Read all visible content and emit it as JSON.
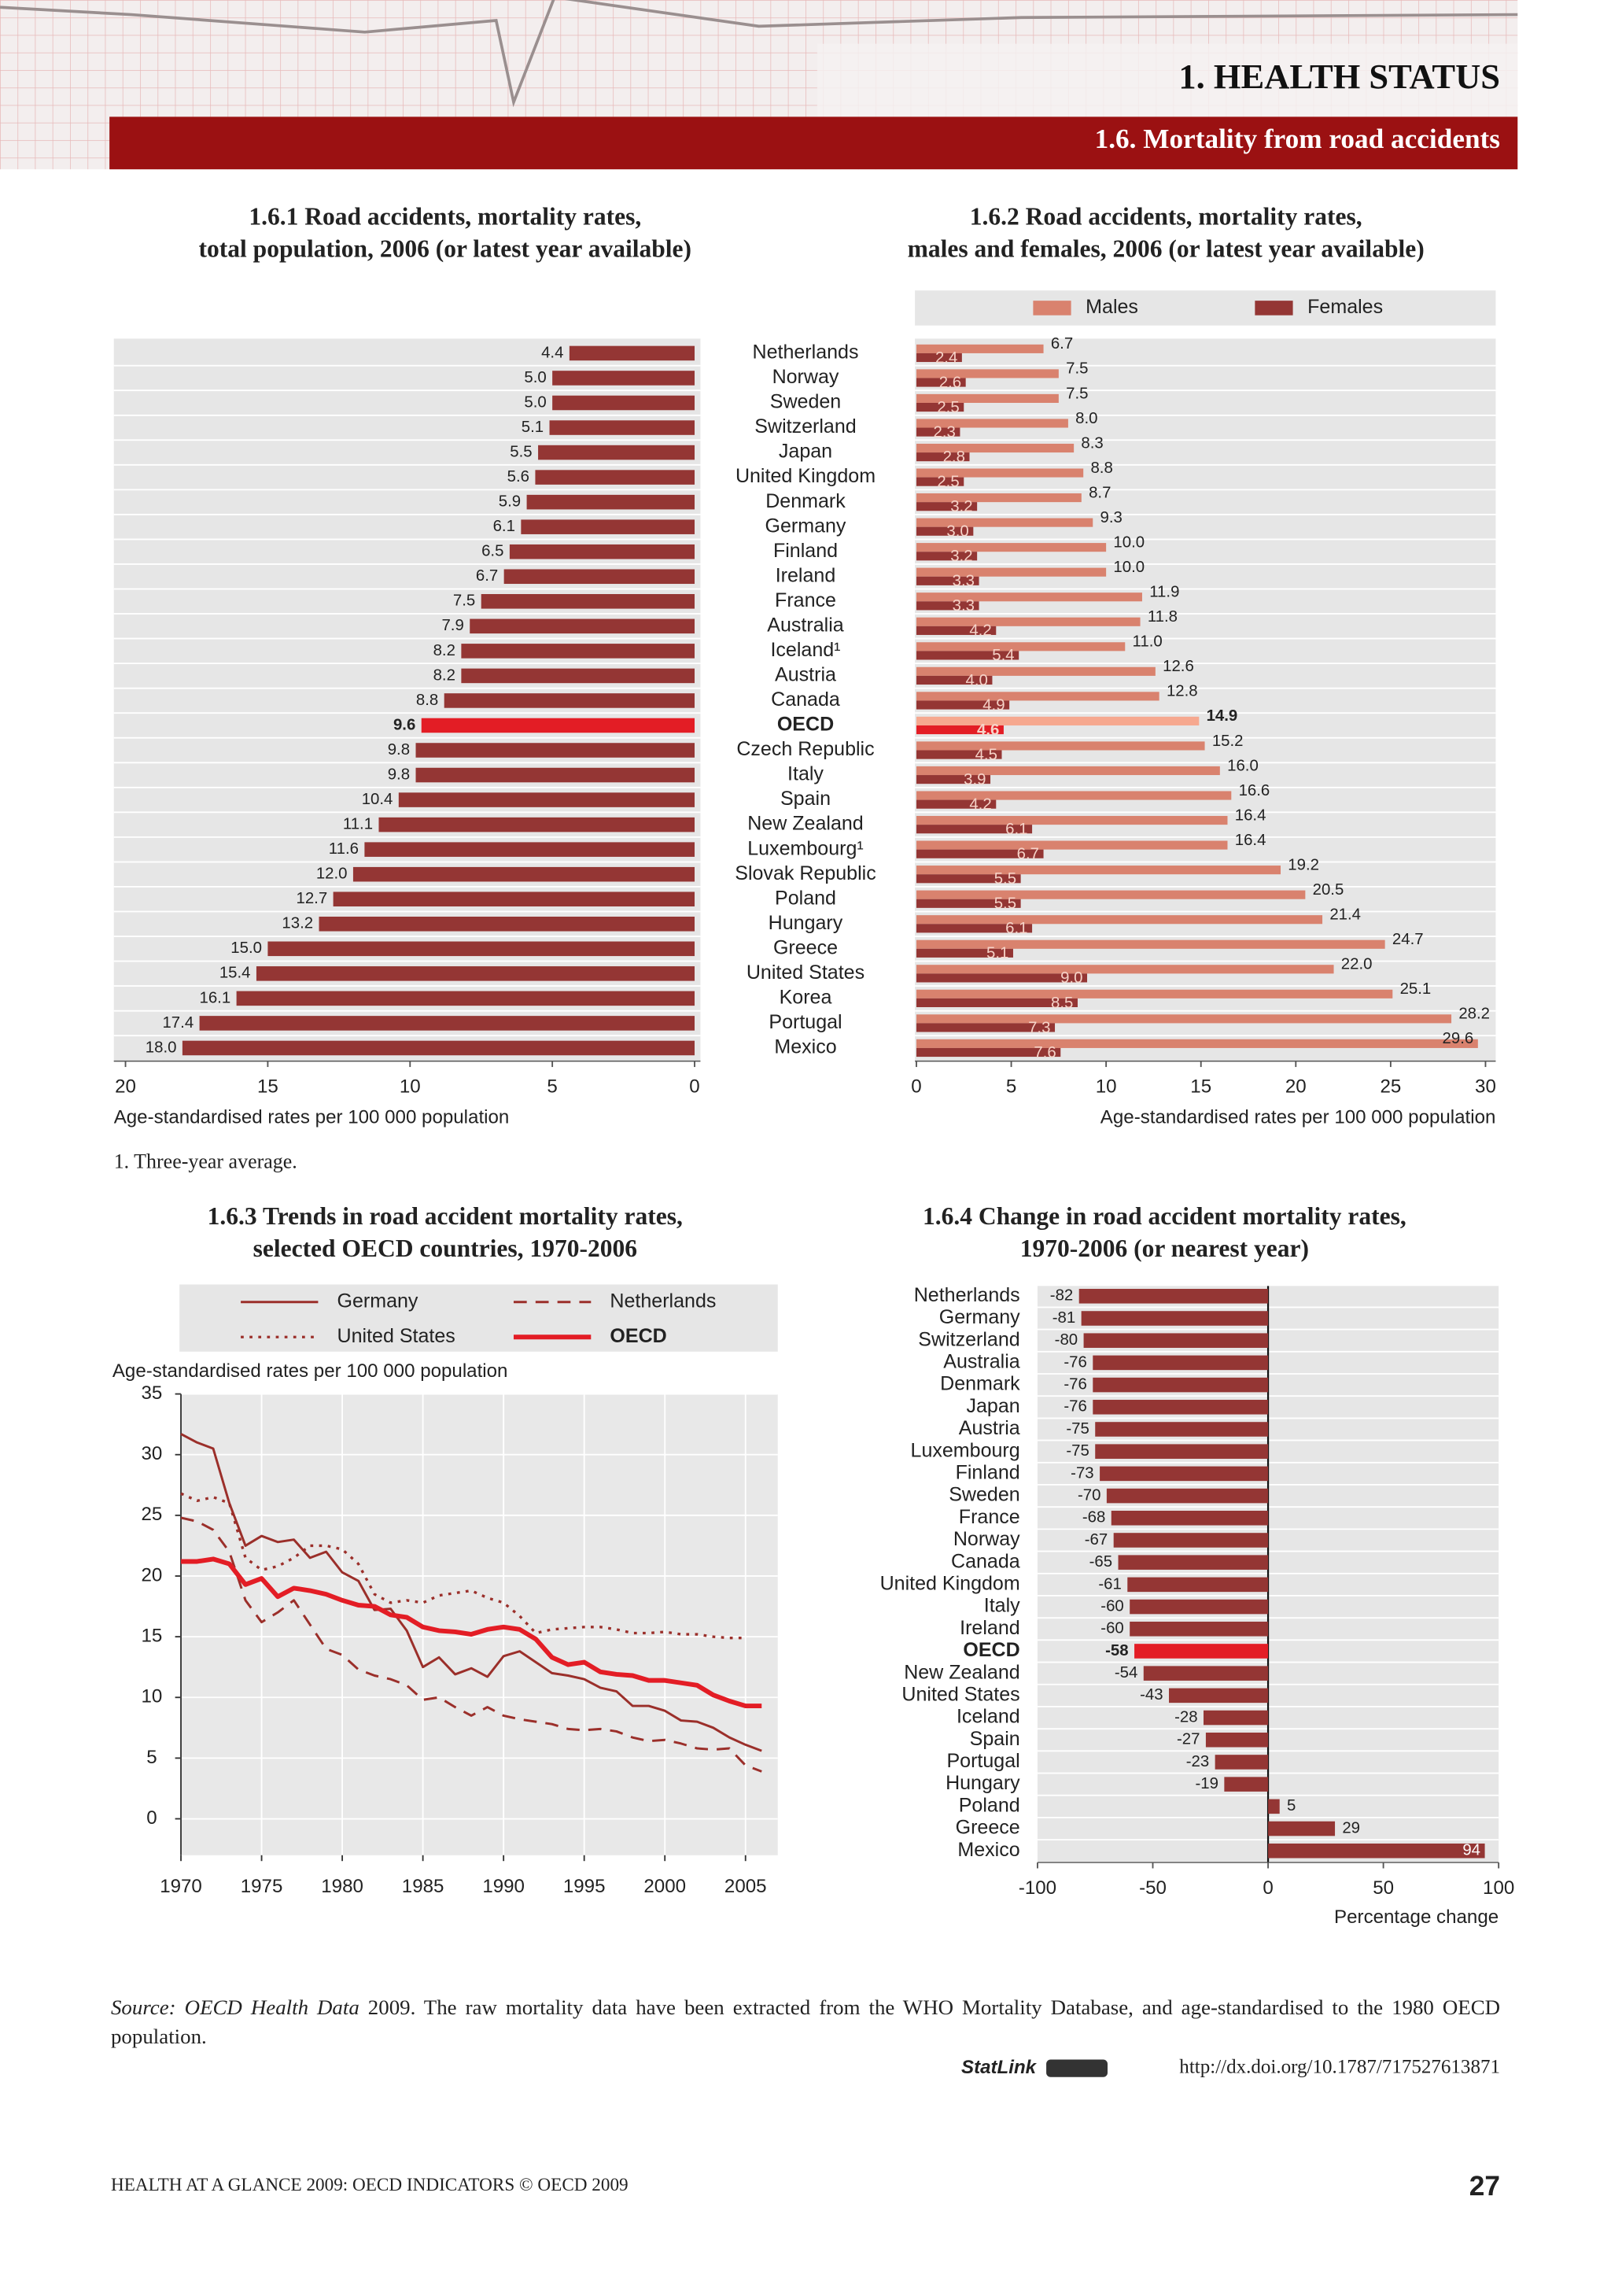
{
  "header": {
    "chapter": "1. HEALTH STATUS",
    "section": "1.6. Mortality from road accidents"
  },
  "chart_data": [
    {
      "type": "bar",
      "orientation": "horizontal",
      "title": [
        "1.6.1 Road accidents, mortality rates,",
        "total population, 2006 (or latest year available)"
      ],
      "categories": [
        "Netherlands",
        "Norway",
        "Sweden",
        "Switzerland",
        "Japan",
        "United Kingdom",
        "Denmark",
        "Germany",
        "Finland",
        "Ireland",
        "France",
        "Australia",
        "Iceland¹",
        "Austria",
        "Canada",
        "OECD",
        "Czech Republic",
        "Italy",
        "Spain",
        "New Zealand",
        "Luxembourg¹",
        "Slovak Republic",
        "Poland",
        "Hungary",
        "Greece",
        "United States",
        "Korea",
        "Portugal",
        "Mexico"
      ],
      "values": [
        4.4,
        5.0,
        5.0,
        5.1,
        5.5,
        5.6,
        5.9,
        6.1,
        6.5,
        6.7,
        7.5,
        7.9,
        8.2,
        8.2,
        8.8,
        9.6,
        9.8,
        9.8,
        10.4,
        11.1,
        11.6,
        12.0,
        12.7,
        13.2,
        15.0,
        15.4,
        16.1,
        17.4,
        18.0
      ],
      "value_labels": [
        "4.4",
        "5.0",
        "5.0",
        "5.1",
        "5.5",
        "5.6",
        "5.9",
        "6.1",
        "6.5",
        "6.7",
        "7.5",
        "7.9",
        "8.2",
        "8.2",
        "8.8",
        "9.6",
        "9.8",
        "9.8",
        "10.4",
        "11.1",
        "11.6",
        "12.0",
        "12.7",
        "13.2",
        "15.0",
        "15.4",
        "16.1",
        "17.4",
        "18.0"
      ],
      "colors": [
        "#943634",
        "#943634",
        "#943634",
        "#943634",
        "#943634",
        "#943634",
        "#943634",
        "#943634",
        "#943634",
        "#943634",
        "#943634",
        "#943634",
        "#943634",
        "#943634",
        "#943634",
        "#e31d25",
        "#943634",
        "#943634",
        "#943634",
        "#943634",
        "#943634",
        "#943634",
        "#943634",
        "#943634",
        "#943634",
        "#943634",
        "#943634",
        "#943634",
        "#943634"
      ],
      "xlim": [
        20,
        0
      ],
      "xticks": [
        20,
        15,
        10,
        5,
        0
      ],
      "xlabel": "Age-standardised rates per 100 000 population"
    },
    {
      "type": "bar",
      "orientation": "horizontal",
      "title": [
        "1.6.2 Road accidents, mortality rates,",
        "males and females, 2006 (or latest year available)"
      ],
      "series": [
        {
          "name": "Males",
          "color": "#d9826e",
          "colors": [
            "#d9826e",
            "#d9826e",
            "#d9826e",
            "#d9826e",
            "#d9826e",
            "#d9826e",
            "#d9826e",
            "#d9826e",
            "#d9826e",
            "#d9826e",
            "#d9826e",
            "#d9826e",
            "#d9826e",
            "#d9826e",
            "#d9826e",
            "#f6a88f",
            "#d9826e",
            "#d9826e",
            "#d9826e",
            "#d9826e",
            "#d9826e",
            "#d9826e",
            "#d9826e",
            "#d9826e",
            "#d9826e",
            "#d9826e",
            "#d9826e",
            "#d9826e",
            "#d9826e"
          ],
          "values": [
            6.7,
            7.5,
            7.5,
            8.0,
            8.3,
            8.8,
            8.7,
            9.3,
            10.0,
            10.0,
            11.9,
            11.8,
            11.0,
            12.6,
            12.8,
            14.9,
            15.2,
            16.0,
            16.6,
            16.4,
            16.4,
            19.2,
            20.5,
            21.4,
            24.7,
            22.0,
            25.1,
            28.2,
            29.6
          ],
          "value_labels": [
            "6.7",
            "7.5",
            "7.5",
            "8.0",
            "8.3",
            "8.8",
            "8.7",
            "9.3",
            "10.0",
            "10.0",
            "11.9",
            "11.8",
            "11.0",
            "12.6",
            "12.8",
            "14.9",
            "15.2",
            "16.0",
            "16.6",
            "16.4",
            "16.4",
            "19.2",
            "20.5",
            "21.4",
            "24.7",
            "22.0",
            "25.1",
            "28.2",
            "29.6"
          ]
        },
        {
          "name": "Females",
          "color": "#943634",
          "colors": [
            "#943634",
            "#943634",
            "#943634",
            "#943634",
            "#943634",
            "#943634",
            "#943634",
            "#943634",
            "#943634",
            "#943634",
            "#943634",
            "#943634",
            "#943634",
            "#943634",
            "#943634",
            "#e31d25",
            "#943634",
            "#943634",
            "#943634",
            "#943634",
            "#943634",
            "#943634",
            "#943634",
            "#943634",
            "#943634",
            "#943634",
            "#943634",
            "#943634",
            "#943634"
          ],
          "values": [
            2.4,
            2.6,
            2.5,
            2.3,
            2.8,
            2.5,
            3.2,
            3.0,
            3.2,
            3.3,
            3.3,
            4.2,
            5.4,
            4.0,
            4.9,
            4.6,
            4.5,
            3.9,
            4.2,
            6.1,
            6.7,
            5.5,
            5.5,
            6.1,
            5.1,
            9.0,
            8.5,
            7.3,
            7.6
          ],
          "value_labels": [
            "2.4",
            "2.6",
            "2.5",
            "2.3",
            "2.8",
            "2.5",
            "3.2",
            "3.0",
            "3.2",
            "3.3",
            "3.3",
            "4.2",
            "5.4",
            "4.0",
            "4.9",
            "4.6",
            "4.5",
            "3.9",
            "4.2",
            "6.1",
            "6.7",
            "5.5",
            "5.5",
            "6.1",
            "5.1",
            "9.0",
            "8.5",
            "7.3",
            "7.6"
          ]
        }
      ],
      "xlim": [
        0,
        30
      ],
      "xticks": [
        0,
        5,
        10,
        15,
        20,
        25,
        30
      ],
      "xlabel": "Age-standardised rates per 100 000 population"
    },
    {
      "type": "line",
      "title": [
        "1.6.3 Trends in road accident mortality rates,",
        "selected OECD countries, 1970-2006"
      ],
      "ylabel": "Age-standardised rates per 100 000 population",
      "x": [
        1970,
        1971,
        1972,
        1973,
        1974,
        1975,
        1976,
        1977,
        1978,
        1979,
        1980,
        1981,
        1982,
        1983,
        1984,
        1985,
        1986,
        1987,
        1988,
        1989,
        1990,
        1991,
        1992,
        1993,
        1994,
        1995,
        1996,
        1997,
        1998,
        1999,
        2000,
        2001,
        2002,
        2003,
        2004,
        2005,
        2006
      ],
      "series": [
        {
          "name": "Germany",
          "color": "#9b2f2a",
          "dash": "solid",
          "width": 1.6,
          "values": [
            31.7,
            31.0,
            30.5,
            26.0,
            22.5,
            23.3,
            22.8,
            23.0,
            21.5,
            22.0,
            20.3,
            19.6,
            17.2,
            17.3,
            15.5,
            12.5,
            13.3,
            11.9,
            12.4,
            11.7,
            13.4,
            13.8,
            12.9,
            12.0,
            11.8,
            11.5,
            10.8,
            10.5,
            9.3,
            9.3,
            8.9,
            8.1,
            8.0,
            7.5,
            6.7,
            6.1,
            5.6
          ]
        },
        {
          "name": "Netherlands",
          "color": "#9b2f2a",
          "dash": "dashed",
          "width": 1.6,
          "values": [
            24.8,
            24.5,
            23.8,
            22.0,
            18.0,
            16.2,
            17.0,
            18.0,
            16.0,
            14.0,
            13.5,
            12.3,
            11.8,
            11.5,
            11.0,
            9.8,
            10.0,
            9.2,
            8.5,
            9.2,
            8.5,
            8.2,
            8.0,
            7.8,
            7.4,
            7.3,
            7.4,
            7.2,
            6.7,
            6.4,
            6.5,
            6.2,
            5.8,
            5.7,
            5.8,
            4.4,
            3.9
          ]
        },
        {
          "name": "United States",
          "color": "#9b2f2a",
          "dash": "dotted",
          "width": 1.8,
          "values": [
            26.8,
            26.2,
            26.5,
            26.0,
            21.5,
            20.5,
            20.8,
            21.5,
            22.5,
            22.5,
            22.2,
            21.0,
            18.5,
            17.8,
            18.0,
            17.8,
            18.4,
            18.6,
            18.8,
            18.2,
            17.8,
            16.7,
            15.3,
            15.6,
            15.7,
            15.8,
            15.8,
            15.6,
            15.3,
            15.3,
            15.4,
            15.2,
            15.2,
            15.0,
            14.9,
            14.9,
            null
          ]
        },
        {
          "name": "OECD",
          "color": "#e31d25",
          "dash": "solid",
          "width": 3.2,
          "values": [
            21.2,
            21.2,
            21.4,
            21.0,
            19.3,
            19.8,
            18.3,
            19.0,
            18.8,
            18.5,
            18.0,
            17.6,
            17.5,
            16.8,
            16.6,
            15.8,
            15.5,
            15.4,
            15.2,
            15.6,
            15.8,
            15.6,
            14.8,
            13.3,
            12.7,
            12.9,
            12.1,
            11.9,
            11.8,
            11.4,
            11.4,
            11.2,
            11.0,
            10.2,
            9.7,
            9.3,
            9.3
          ]
        }
      ],
      "xlim": [
        1970,
        2007
      ],
      "xticks": [
        1970,
        1975,
        1980,
        1985,
        1990,
        1995,
        2000,
        2005
      ],
      "ylim": [
        -3,
        35
      ],
      "yticks": [
        0,
        5,
        10,
        15,
        20,
        25,
        30,
        35
      ],
      "grid": true
    },
    {
      "type": "bar",
      "orientation": "horizontal",
      "title": [
        "1.6.4 Change in road accident mortality rates,",
        "1970-2006 (or nearest year)"
      ],
      "categories": [
        "Netherlands",
        "Germany",
        "Switzerland",
        "Australia",
        "Denmark",
        "Japan",
        "Austria",
        "Luxembourg",
        "Finland",
        "Sweden",
        "France",
        "Norway",
        "Canada",
        "United Kingdom",
        "Italy",
        "Ireland",
        "OECD",
        "New Zealand",
        "United States",
        "Iceland",
        "Spain",
        "Portugal",
        "Hungary",
        "Poland",
        "Greece",
        "Mexico"
      ],
      "values": [
        -82,
        -81,
        -80,
        -76,
        -76,
        -76,
        -75,
        -75,
        -73,
        -70,
        -68,
        -67,
        -65,
        -61,
        -60,
        -60,
        -58,
        -54,
        -43,
        -28,
        -27,
        -23,
        -19,
        5,
        29,
        94
      ],
      "colors": [
        "#943634",
        "#943634",
        "#943634",
        "#943634",
        "#943634",
        "#943634",
        "#943634",
        "#943634",
        "#943634",
        "#943634",
        "#943634",
        "#943634",
        "#943634",
        "#943634",
        "#943634",
        "#943634",
        "#e31d25",
        "#943634",
        "#943634",
        "#943634",
        "#943634",
        "#943634",
        "#943634",
        "#943634",
        "#943634",
        "#943634"
      ],
      "xlim": [
        -100,
        100
      ],
      "xticks": [
        -100,
        -50,
        0,
        50,
        100
      ],
      "xlabel": "Percentage change"
    }
  ],
  "footnote": "1. Three-year average.",
  "source": {
    "label": "Source:",
    "italic": "OECD Health Data",
    "text": "2009. The raw mortality data have been extracted from the WHO Mortality Database, and age-standardised to the 1980 OECD population."
  },
  "statlink": {
    "label": "StatLink",
    "url": "http://dx.doi.org/10.1787/717527613871"
  },
  "footer": {
    "text": "HEALTH AT A GLANCE 2009: OECD INDICATORS © OECD 2009",
    "page": "27"
  }
}
